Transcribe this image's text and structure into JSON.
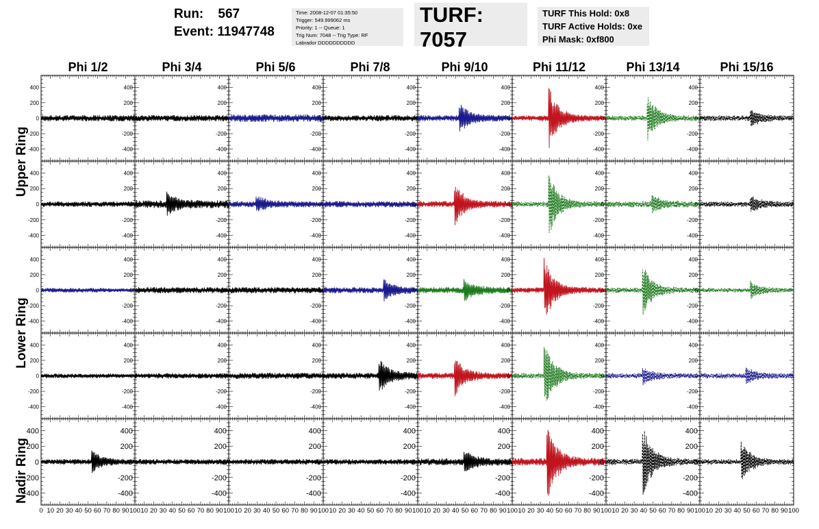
{
  "header": {
    "run_label": "Run:",
    "run_value": "567",
    "event_label": "Event:",
    "event_value": "11947748",
    "accent_color": "#d9534f",
    "info_lines": [
      "Time: 2008-12-07 01:35:50",
      "Trigger: 549.999062 ms",
      "Priority: 1 -- Queue: 1",
      "Trig Num: 7048 -- Trig Type: RF",
      "Labrador DDDDDDDDDD"
    ],
    "turf_title": "TURF: 7057",
    "turf_lines": [
      "TURF This Hold: 0x8",
      "TURF Active Holds: 0xe",
      "Phi Mask: 0xf800"
    ]
  },
  "columns": [
    "Phi 1/2",
    "Phi 3/4",
    "Phi 5/6",
    "Phi 7/8",
    "Phi 9/10",
    "Phi 11/12",
    "Phi 13/14",
    "Phi 15/16"
  ],
  "ring_labels": [
    "Upper Ring",
    "Lower Ring",
    "Nadir Ring"
  ],
  "chart_data": {
    "type": "line",
    "grid": false,
    "xlim": [
      0,
      100
    ],
    "ylim": [
      -500,
      500
    ],
    "y_ticks": [
      "400",
      "200",
      "0",
      "-200",
      "-400"
    ],
    "x_ticks": [
      "0",
      "10",
      "20",
      "30",
      "40",
      "50",
      "60",
      "70",
      "80",
      "90",
      "100"
    ],
    "line_colors": {
      "black": "#000000",
      "blue": "#1a1a8c",
      "red": "#c0141e",
      "green": "#1e7a1e"
    },
    "panels": [
      [
        {
          "color": "black",
          "style": "solid",
          "noise": 40,
          "peak": 0,
          "peak_x": 0
        },
        {
          "color": "black",
          "style": "solid",
          "noise": 40,
          "peak": 0,
          "peak_x": 0
        },
        {
          "color": "blue",
          "style": "solid",
          "noise": 50,
          "peak": 0,
          "peak_x": 0
        },
        {
          "color": "black",
          "style": "solid",
          "noise": 40,
          "peak": 0,
          "peak_x": 0
        },
        {
          "color": "blue",
          "style": "solid",
          "noise": 40,
          "peak": 200,
          "peak_x": 45
        },
        {
          "color": "red",
          "style": "solid",
          "noise": 35,
          "peak": 400,
          "peak_x": 40
        },
        {
          "color": "green",
          "style": "dashed",
          "noise": 35,
          "peak": 300,
          "peak_x": 45
        },
        {
          "color": "black",
          "style": "dashed",
          "noise": 35,
          "peak": 100,
          "peak_x": 55
        }
      ],
      [
        {
          "color": "black",
          "style": "solid",
          "noise": 35,
          "peak": 0,
          "peak_x": 0
        },
        {
          "color": "black",
          "style": "solid",
          "noise": 50,
          "peak": 130,
          "peak_x": 35
        },
        {
          "color": "blue",
          "style": "solid",
          "noise": 40,
          "peak": 100,
          "peak_x": 30
        },
        {
          "color": "blue",
          "style": "solid",
          "noise": 40,
          "peak": 0,
          "peak_x": 0
        },
        {
          "color": "red",
          "style": "solid",
          "noise": 40,
          "peak": 260,
          "peak_x": 40
        },
        {
          "color": "green",
          "style": "dashed",
          "noise": 35,
          "peak": 380,
          "peak_x": 40
        },
        {
          "color": "green",
          "style": "dashed",
          "noise": 40,
          "peak": 100,
          "peak_x": 50
        },
        {
          "color": "black",
          "style": "dashed",
          "noise": 35,
          "peak": 100,
          "peak_x": 55
        }
      ],
      [
        {
          "color": "blue",
          "style": "solid",
          "noise": 30,
          "peak": 0,
          "peak_x": 0
        },
        {
          "color": "black",
          "style": "solid",
          "noise": 40,
          "peak": 0,
          "peak_x": 0
        },
        {
          "color": "black",
          "style": "solid",
          "noise": 40,
          "peak": 0,
          "peak_x": 0
        },
        {
          "color": "blue",
          "style": "solid",
          "noise": 40,
          "peak": 130,
          "peak_x": 65
        },
        {
          "color": "green",
          "style": "solid",
          "noise": 40,
          "peak": 130,
          "peak_x": 50
        },
        {
          "color": "red",
          "style": "solid",
          "noise": 35,
          "peak": 420,
          "peak_x": 35
        },
        {
          "color": "green",
          "style": "dashed",
          "noise": 35,
          "peak": 330,
          "peak_x": 40
        },
        {
          "color": "green",
          "style": "dashed",
          "noise": 30,
          "peak": 100,
          "peak_x": 55
        }
      ],
      [
        {
          "color": "black",
          "style": "solid",
          "noise": 30,
          "peak": 0,
          "peak_x": 0
        },
        {
          "color": "black",
          "style": "solid",
          "noise": 35,
          "peak": 0,
          "peak_x": 0
        },
        {
          "color": "black",
          "style": "solid",
          "noise": 40,
          "peak": 0,
          "peak_x": 0
        },
        {
          "color": "black",
          "style": "solid",
          "noise": 40,
          "peak": 220,
          "peak_x": 60
        },
        {
          "color": "red",
          "style": "solid",
          "noise": 40,
          "peak": 250,
          "peak_x": 40
        },
        {
          "color": "green",
          "style": "dashed",
          "noise": 35,
          "peak": 430,
          "peak_x": 35
        },
        {
          "color": "blue",
          "style": "dashed",
          "noise": 35,
          "peak": 100,
          "peak_x": 40
        },
        {
          "color": "blue",
          "style": "dashed",
          "noise": 35,
          "peak": 100,
          "peak_x": 50
        }
      ],
      [
        {
          "color": "black",
          "style": "solid",
          "noise": 35,
          "peak": 130,
          "peak_x": 55
        },
        {
          "color": "black",
          "style": "solid",
          "noise": 35,
          "peak": 0,
          "peak_x": 0
        },
        {
          "color": "black",
          "style": "solid",
          "noise": 35,
          "peak": 0,
          "peak_x": 0
        },
        {
          "color": "black",
          "style": "solid",
          "noise": 35,
          "peak": 0,
          "peak_x": 0
        },
        {
          "color": "black",
          "style": "solid",
          "noise": 45,
          "peak": 130,
          "peak_x": 50
        },
        {
          "color": "red",
          "style": "solid",
          "noise": 50,
          "peak": 480,
          "peak_x": 38
        },
        {
          "color": "black",
          "style": "dashed",
          "noise": 40,
          "peak": 470,
          "peak_x": 40
        },
        {
          "color": "black",
          "style": "dashed",
          "noise": 35,
          "peak": 250,
          "peak_x": 45
        }
      ]
    ]
  }
}
